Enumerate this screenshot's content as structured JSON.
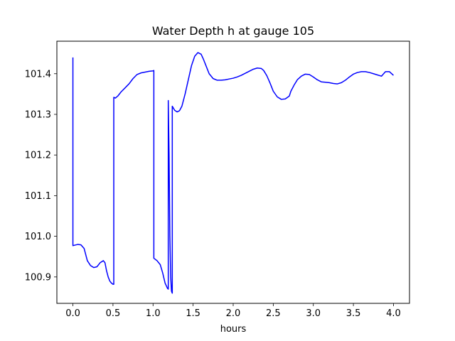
{
  "chart_data": {
    "type": "line",
    "title": "Water Depth h at gauge 105",
    "xlabel": "hours",
    "ylabel": "",
    "xlim": [
      -0.2,
      4.2
    ],
    "ylim": [
      100.835,
      101.48
    ],
    "xticks": [
      0.0,
      0.5,
      1.0,
      1.5,
      2.0,
      2.5,
      3.0,
      3.5,
      4.0
    ],
    "xtick_labels": [
      "0.0",
      "0.5",
      "1.0",
      "1.5",
      "2.0",
      "2.5",
      "3.0",
      "3.5",
      "4.0"
    ],
    "yticks": [
      100.9,
      101.0,
      101.1,
      101.2,
      101.3,
      101.4
    ],
    "ytick_labels": [
      "100.9",
      "101.0",
      "101.1",
      "101.2",
      "101.3",
      "101.4"
    ],
    "grid": false,
    "line_color": "#0000ff",
    "series": [
      {
        "x": [
          0.0,
          0.0,
          0.02,
          0.06,
          0.1,
          0.14,
          0.18,
          0.22,
          0.26,
          0.3,
          0.34,
          0.38,
          0.4,
          0.42,
          0.44,
          0.46,
          0.48,
          0.5,
          0.51,
          0.51,
          0.53,
          0.56,
          0.6,
          0.65,
          0.7,
          0.75,
          0.8,
          0.85,
          0.9,
          0.95,
          1.0,
          1.01,
          1.01,
          1.05,
          1.09,
          1.12,
          1.15,
          1.18,
          1.19,
          1.19,
          1.2,
          1.21,
          1.22,
          1.23,
          1.24,
          1.24,
          1.27,
          1.3,
          1.33,
          1.36,
          1.4,
          1.44,
          1.48,
          1.52,
          1.56,
          1.6,
          1.63,
          1.66,
          1.7,
          1.75,
          1.8,
          1.85,
          1.9,
          1.95,
          2.0,
          2.05,
          2.1,
          2.15,
          2.2,
          2.25,
          2.3,
          2.35,
          2.38,
          2.42,
          2.46,
          2.5,
          2.55,
          2.6,
          2.65,
          2.7,
          2.72,
          2.76,
          2.8,
          2.85,
          2.9,
          2.95,
          3.0,
          3.05,
          3.1,
          3.15,
          3.2,
          3.25,
          3.3,
          3.35,
          3.4,
          3.45,
          3.5,
          3.55,
          3.6,
          3.65,
          3.7,
          3.75,
          3.8,
          3.85,
          3.9,
          3.95,
          4.0
        ],
        "y": [
          101.44,
          100.977,
          100.978,
          100.98,
          100.979,
          100.97,
          100.94,
          100.928,
          100.923,
          100.925,
          100.935,
          100.94,
          100.935,
          100.915,
          100.9,
          100.89,
          100.885,
          100.882,
          100.882,
          101.342,
          101.34,
          101.345,
          101.355,
          101.365,
          101.375,
          101.388,
          101.398,
          101.402,
          101.404,
          101.406,
          101.407,
          101.408,
          100.946,
          100.94,
          100.93,
          100.91,
          100.885,
          100.872,
          100.87,
          101.334,
          101.2,
          101.0,
          100.9,
          100.865,
          100.86,
          101.32,
          101.31,
          101.306,
          101.309,
          101.32,
          101.35,
          101.385,
          101.42,
          101.443,
          101.452,
          101.448,
          101.435,
          101.42,
          101.4,
          101.388,
          101.384,
          101.384,
          101.385,
          101.387,
          101.389,
          101.392,
          101.396,
          101.401,
          101.406,
          101.411,
          101.414,
          101.413,
          101.408,
          101.395,
          101.377,
          101.357,
          101.343,
          101.337,
          101.338,
          101.345,
          101.357,
          101.372,
          101.385,
          101.394,
          101.399,
          101.398,
          101.392,
          101.385,
          101.38,
          101.379,
          101.378,
          101.376,
          101.375,
          101.378,
          101.384,
          101.392,
          101.399,
          101.403,
          101.405,
          101.405,
          101.403,
          101.4,
          101.397,
          101.394,
          101.405,
          101.405,
          101.396
        ]
      }
    ]
  }
}
